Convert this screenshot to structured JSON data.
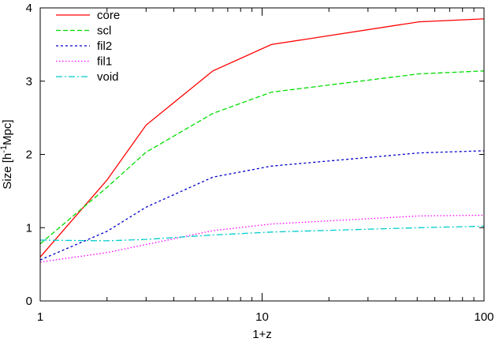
{
  "chart_data": {
    "type": "line",
    "title": "",
    "xlabel": "1+z",
    "ylabel_main": "Size [h",
    "ylabel_sup": "-1",
    "ylabel_rest": "Mpc]",
    "xscale": "log",
    "xlim": [
      1,
      100
    ],
    "ylim": [
      0,
      4
    ],
    "xticks": [
      1,
      10,
      100
    ],
    "xtick_labels": [
      "1",
      "10",
      "100"
    ],
    "yticks": [
      0,
      1,
      2,
      3,
      4
    ],
    "ytick_labels": [
      "0",
      "1",
      "2",
      "3",
      "4"
    ],
    "grid": false,
    "legend_position": "top-left",
    "series": [
      {
        "name": "core",
        "color": "#ff0000",
        "dash": "solid",
        "x": [
          1,
          2,
          3,
          6,
          11,
          51,
          100
        ],
        "y": [
          0.6,
          1.65,
          2.4,
          3.14,
          3.5,
          3.81,
          3.85
        ]
      },
      {
        "name": "scl",
        "color": "#00dd00",
        "dash": "dashed",
        "x": [
          1,
          2,
          3,
          6,
          11,
          51,
          100
        ],
        "y": [
          0.78,
          1.55,
          2.03,
          2.56,
          2.85,
          3.1,
          3.14
        ]
      },
      {
        "name": "fil2",
        "color": "#0000cc",
        "dash": "dotted-dense",
        "x": [
          1,
          2,
          3,
          6,
          11,
          51,
          100
        ],
        "y": [
          0.56,
          0.95,
          1.28,
          1.69,
          1.84,
          2.02,
          2.05
        ]
      },
      {
        "name": "fil1",
        "color": "#ff00ff",
        "dash": "dotted",
        "x": [
          1,
          2,
          3,
          6,
          11,
          51,
          100
        ],
        "y": [
          0.53,
          0.66,
          0.77,
          0.96,
          1.05,
          1.16,
          1.17
        ]
      },
      {
        "name": "void",
        "color": "#00cccc",
        "dash": "dash-dot",
        "x": [
          1,
          2,
          3,
          6,
          11,
          51,
          100
        ],
        "y": [
          0.83,
          0.82,
          0.84,
          0.9,
          0.94,
          1.0,
          1.02
        ]
      }
    ]
  }
}
